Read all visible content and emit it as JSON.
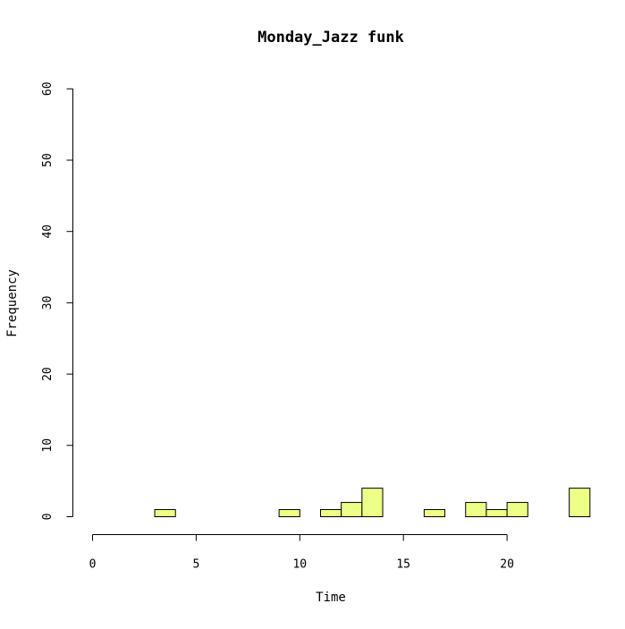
{
  "chart_data": {
    "type": "bar",
    "title": "Monday_Jazz funk",
    "xlabel": "Time",
    "ylabel": "Frequency",
    "bin_width": 1,
    "categories": [
      "0",
      "1",
      "2",
      "3",
      "4",
      "5",
      "6",
      "7",
      "8",
      "9",
      "10",
      "11",
      "12",
      "13",
      "14",
      "15",
      "16",
      "17",
      "18",
      "19",
      "20",
      "21",
      "22",
      "23"
    ],
    "values": [
      0,
      0,
      0,
      1,
      0,
      0,
      0,
      0,
      0,
      1,
      0,
      1,
      2,
      4,
      0,
      0,
      1,
      0,
      2,
      1,
      2,
      0,
      0,
      4
    ],
    "xlim": [
      0,
      24
    ],
    "ylim": [
      0,
      60
    ],
    "x_ticks": [
      "0",
      "5",
      "10",
      "15",
      "20"
    ],
    "y_ticks": [
      "0",
      "10",
      "20",
      "30",
      "40",
      "50",
      "60"
    ],
    "bar_color": "#eeff88",
    "grid": false
  }
}
